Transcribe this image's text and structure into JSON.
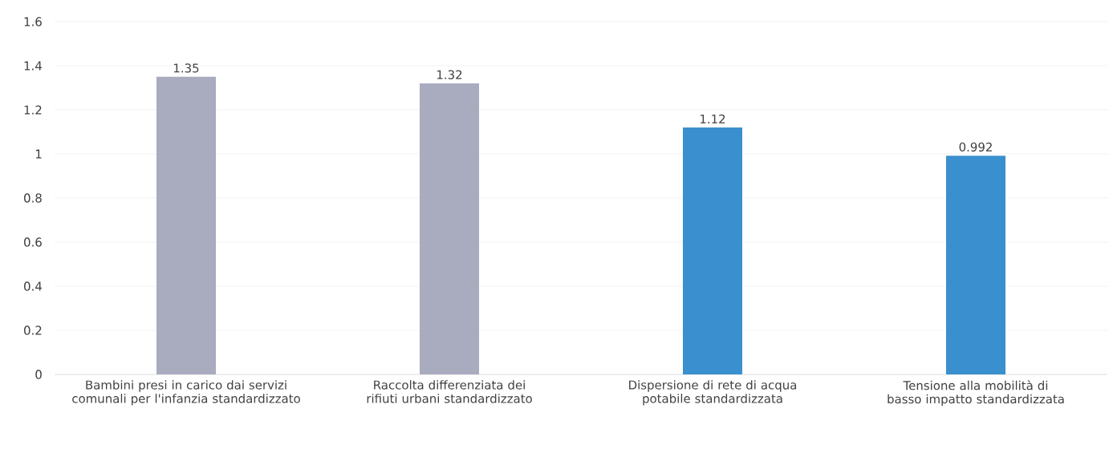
{
  "chart_data": {
    "type": "bar",
    "categories": [
      "Bambini presi in carico dai servizi comunali per l'infanzia standardizzato",
      "Raccolta differenziata dei rifiuti urbani standardizzato",
      "Dispersione di rete di acqua potabile standardizzata",
      "Tensione alla mobilità di basso impatto standardizzata"
    ],
    "values": [
      1.35,
      1.32,
      1.12,
      0.992
    ],
    "colors": [
      "#a9abbf",
      "#a9abbf",
      "#3a8fcf",
      "#3a8fcf"
    ],
    "ylim": [
      0,
      1.6
    ],
    "yticks": [
      0,
      0.2,
      0.4,
      0.6,
      0.8,
      1,
      1.2,
      1.4,
      1.6
    ],
    "grid": "y",
    "data_labels": true
  }
}
